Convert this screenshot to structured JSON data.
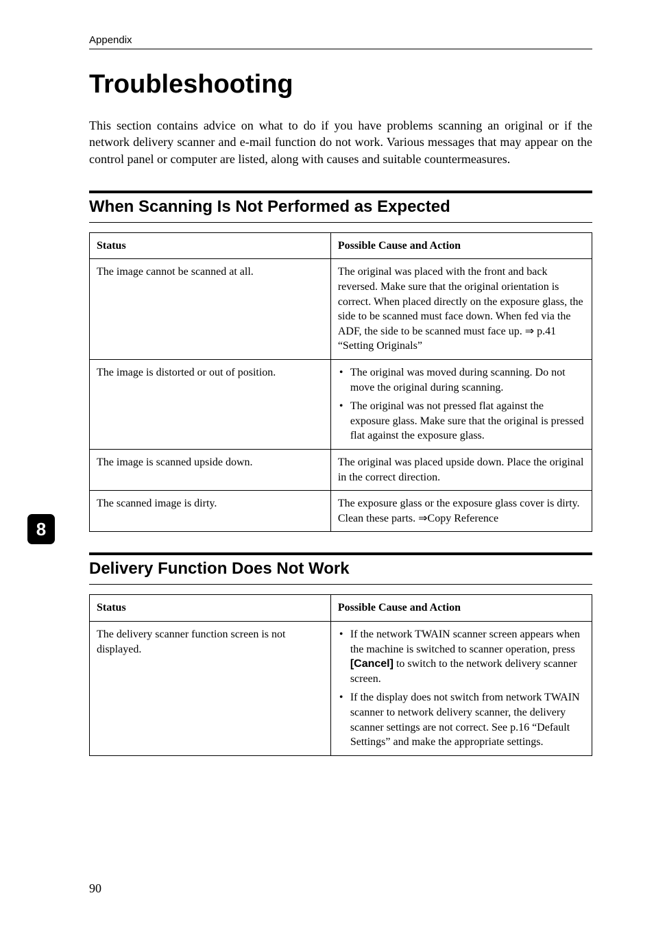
{
  "running_head": "Appendix",
  "title": "Troubleshooting",
  "intro": "This section contains advice on what to do if you have problems scanning an original or if the network delivery scanner and e-mail function do not work. Various messages that may appear on the control panel or computer are listed, along with causes and suitable countermeasures.",
  "section1": {
    "heading": "When Scanning Is Not Performed as Expected",
    "col_status": "Status",
    "col_action": "Possible Cause and Action",
    "rows": {
      "r0": {
        "status": "The image cannot be scanned at all.",
        "action": "The original was placed with the front and back reversed. Make sure that the original orientation is correct. When placed directly on the exposure glass, the side to be scanned must face down. When fed via the ADF, the side to be scanned must face up. ⇒ p.41 “Setting Originals”"
      },
      "r1": {
        "status": "The image is distorted or out of position.",
        "b0": "The original was moved during scanning. Do not move the original during scanning.",
        "b1": "The original was not pressed flat against the exposure glass. Make sure that the original is pressed flat against the exposure glass."
      },
      "r2": {
        "status": "The image is scanned upside down.",
        "action": "The original was placed upside down. Place the original in the correct direction."
      },
      "r3": {
        "status": "The scanned image is dirty.",
        "action": "The exposure glass or the exposure glass cover is dirty. Clean these parts. ⇒Copy Reference"
      }
    }
  },
  "section2": {
    "heading": "Delivery Function Does Not Work",
    "col_status": "Status",
    "col_action": "Possible Cause and Action",
    "rows": {
      "r0": {
        "status": "The delivery scanner function screen is not displayed.",
        "b0_pre": "If the network TWAIN scanner screen appears when the machine is switched to scanner operation, press ",
        "b0_key": "[Cancel]",
        "b0_post": " to switch to the network delivery scanner screen.",
        "b1": "If the display does not switch from network TWAIN scanner to network delivery scanner, the delivery scanner settings are not correct. See p.16 “Default Settings” and make the appropriate settings."
      }
    }
  },
  "side_tab": "8",
  "page_number": "90"
}
